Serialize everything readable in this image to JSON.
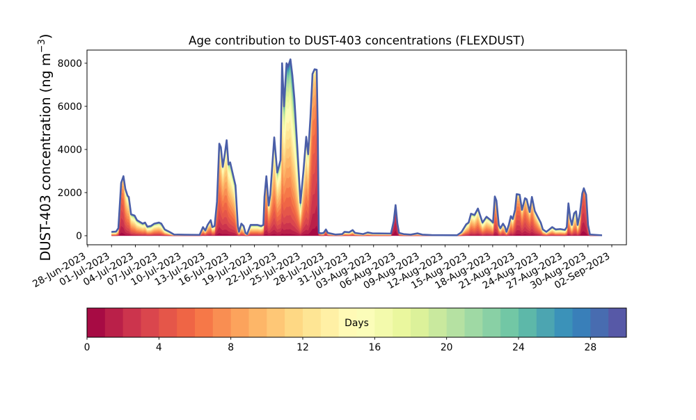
{
  "chart_data": {
    "type": "area",
    "subtype": "stacked-by-age",
    "title": "Age contribution to DUST-403 concentrations (FLEXDUST)",
    "xlabel": "",
    "ylabel": {
      "main": "DUST-403 concentration (ng m",
      "sup": "−3",
      "close": ")"
    },
    "x_units": "days since 01-Jul-2023",
    "x_origin_date": "01-Jul-2023",
    "xlim": [
      -3.09,
      64.84
    ],
    "ylim": [
      -420,
      8610
    ],
    "grid": false,
    "legend": "none",
    "xticks": {
      "values": [
        -3,
        0,
        3,
        6,
        9,
        12,
        15,
        18,
        21,
        24,
        27,
        30,
        33,
        36,
        39,
        42,
        45,
        48,
        51,
        54,
        57,
        60,
        63
      ],
      "labels": [
        "28-Jun-2023",
        "01-Jul-2023",
        "04-Jul-2023",
        "07-Jul-2023",
        "10-Jul-2023",
        "13-Jul-2023",
        "16-Jul-2023",
        "19-Jul-2023",
        "22-Jul-2023",
        "25-Jul-2023",
        "28-Jul-2023",
        "31-Jul-2023",
        "03-Aug-2023",
        "06-Aug-2023",
        "09-Aug-2023",
        "12-Aug-2023",
        "15-Aug-2023",
        "18-Aug-2023",
        "21-Aug-2023",
        "24-Aug-2023",
        "27-Aug-2023",
        "30-Aug-2023",
        "02-Sep-2023"
      ]
    },
    "yticks": {
      "values": [
        0,
        2000,
        4000,
        6000,
        8000
      ],
      "labels": [
        "0",
        "2000",
        "4000",
        "6000",
        "8000"
      ]
    },
    "points_fields": [
      "day",
      "total_ng_m3",
      "median_age_days"
    ],
    "points": [
      [
        0.0,
        180,
        12
      ],
      [
        0.57,
        190,
        12
      ],
      [
        0.86,
        350,
        10
      ],
      [
        1.21,
        2450,
        4
      ],
      [
        1.5,
        2760,
        5
      ],
      [
        1.74,
        2170,
        7
      ],
      [
        2.02,
        1850,
        8
      ],
      [
        2.17,
        1800,
        8
      ],
      [
        2.46,
        990,
        9
      ],
      [
        2.9,
        935,
        10
      ],
      [
        3.2,
        720,
        10
      ],
      [
        3.93,
        560,
        10
      ],
      [
        4.22,
        610,
        10
      ],
      [
        4.51,
        420,
        11
      ],
      [
        4.95,
        450,
        11
      ],
      [
        5.39,
        560,
        10
      ],
      [
        5.97,
        610,
        10
      ],
      [
        6.27,
        560,
        11
      ],
      [
        6.7,
        290,
        12
      ],
      [
        7.28,
        180,
        13
      ],
      [
        7.87,
        55,
        14
      ],
      [
        9.19,
        45,
        14
      ],
      [
        11.09,
        40,
        13
      ],
      [
        11.52,
        400,
        8
      ],
      [
        11.81,
        240,
        9
      ],
      [
        12.1,
        500,
        8
      ],
      [
        12.49,
        720,
        8
      ],
      [
        12.69,
        400,
        9
      ],
      [
        12.98,
        450,
        9
      ],
      [
        13.28,
        1580,
        5
      ],
      [
        13.57,
        4270,
        6
      ],
      [
        13.77,
        4100,
        7
      ],
      [
        14.01,
        3190,
        7
      ],
      [
        14.24,
        3730,
        7
      ],
      [
        14.5,
        4430,
        8
      ],
      [
        14.73,
        3300,
        8
      ],
      [
        14.94,
        3400,
        9
      ],
      [
        15.17,
        3030,
        9
      ],
      [
        15.47,
        2550,
        9
      ],
      [
        15.61,
        2330,
        10
      ],
      [
        15.91,
        450,
        11
      ],
      [
        16.05,
        180,
        10
      ],
      [
        16.35,
        560,
        10
      ],
      [
        16.63,
        450,
        11
      ],
      [
        16.87,
        130,
        11
      ],
      [
        17.07,
        75,
        10
      ],
      [
        17.51,
        500,
        10
      ],
      [
        18.39,
        500,
        10
      ],
      [
        18.83,
        450,
        10
      ],
      [
        19.12,
        500,
        9
      ],
      [
        19.26,
        1800,
        6
      ],
      [
        19.5,
        2760,
        6
      ],
      [
        19.79,
        1400,
        7
      ],
      [
        19.99,
        1900,
        7
      ],
      [
        20.49,
        4560,
        8
      ],
      [
        20.87,
        2930,
        9
      ],
      [
        21.28,
        3500,
        9
      ],
      [
        21.48,
        8000,
        10
      ],
      [
        21.72,
        6000,
        10
      ],
      [
        22.04,
        8000,
        11
      ],
      [
        22.24,
        7850,
        11
      ],
      [
        22.53,
        8180,
        11
      ],
      [
        22.77,
        7450,
        12
      ],
      [
        23.03,
        6350,
        12
      ],
      [
        23.38,
        4200,
        12
      ],
      [
        23.79,
        1520,
        11
      ],
      [
        24.17,
        3000,
        8
      ],
      [
        24.52,
        4590,
        8
      ],
      [
        24.76,
        3780,
        8
      ],
      [
        25.05,
        5500,
        6
      ],
      [
        25.31,
        7500,
        5
      ],
      [
        25.57,
        7720,
        5
      ],
      [
        25.84,
        7700,
        4
      ],
      [
        25.97,
        5000,
        4
      ],
      [
        26.1,
        130,
        6
      ],
      [
        26.42,
        110,
        9
      ],
      [
        26.71,
        130,
        10
      ],
      [
        27.0,
        290,
        5
      ],
      [
        27.24,
        130,
        10
      ],
      [
        28.18,
        55,
        12
      ],
      [
        29.05,
        75,
        12
      ],
      [
        29.34,
        180,
        11
      ],
      [
        29.93,
        160,
        11
      ],
      [
        30.37,
        260,
        10
      ],
      [
        30.66,
        130,
        11
      ],
      [
        31.68,
        75,
        12
      ],
      [
        32.26,
        150,
        11
      ],
      [
        32.85,
        110,
        12
      ],
      [
        35.19,
        100,
        12
      ],
      [
        35.54,
        670,
        2
      ],
      [
        35.77,
        1420,
        2
      ],
      [
        36.0,
        560,
        3
      ],
      [
        36.21,
        130,
        8
      ],
      [
        36.79,
        75,
        11
      ],
      [
        37.67,
        50,
        13
      ],
      [
        38.55,
        110,
        12
      ],
      [
        39.13,
        50,
        13
      ],
      [
        40.3,
        30,
        14
      ],
      [
        43.51,
        20,
        14
      ],
      [
        43.95,
        130,
        12
      ],
      [
        44.09,
        180,
        11
      ],
      [
        44.67,
        530,
        10
      ],
      [
        44.97,
        610,
        9
      ],
      [
        45.27,
        1020,
        8
      ],
      [
        45.71,
        960,
        9
      ],
      [
        46.14,
        1260,
        8
      ],
      [
        46.43,
        935,
        9
      ],
      [
        46.72,
        610,
        10
      ],
      [
        47.22,
        880,
        9
      ],
      [
        47.75,
        720,
        9
      ],
      [
        48.04,
        610,
        10
      ],
      [
        48.27,
        1820,
        6
      ],
      [
        48.47,
        1630,
        6
      ],
      [
        48.77,
        500,
        8
      ],
      [
        48.97,
        340,
        9
      ],
      [
        49.3,
        560,
        8
      ],
      [
        49.56,
        400,
        9
      ],
      [
        49.74,
        180,
        10
      ],
      [
        50.03,
        500,
        8
      ],
      [
        50.29,
        910,
        7
      ],
      [
        50.53,
        775,
        8
      ],
      [
        50.82,
        1200,
        6
      ],
      [
        51.02,
        1930,
        5
      ],
      [
        51.4,
        1900,
        5
      ],
      [
        51.69,
        1200,
        6
      ],
      [
        52.07,
        1740,
        5
      ],
      [
        52.28,
        1690,
        6
      ],
      [
        52.66,
        1100,
        6
      ],
      [
        52.94,
        1800,
        6
      ],
      [
        53.3,
        1150,
        7
      ],
      [
        53.71,
        850,
        8
      ],
      [
        54.06,
        600,
        9
      ],
      [
        54.32,
        290,
        10
      ],
      [
        54.76,
        180,
        11
      ],
      [
        55.2,
        310,
        10
      ],
      [
        55.49,
        400,
        10
      ],
      [
        55.93,
        290,
        11
      ],
      [
        56.51,
        310,
        11
      ],
      [
        57.1,
        270,
        11
      ],
      [
        57.33,
        400,
        10
      ],
      [
        57.54,
        1500,
        8
      ],
      [
        57.76,
        825,
        9
      ],
      [
        57.97,
        500,
        10
      ],
      [
        58.26,
        1040,
        9
      ],
      [
        58.5,
        1130,
        9
      ],
      [
        58.7,
        500,
        10
      ],
      [
        58.99,
        1040,
        8
      ],
      [
        59.28,
        1960,
        3
      ],
      [
        59.48,
        2200,
        3
      ],
      [
        59.77,
        1900,
        4
      ],
      [
        60.01,
        500,
        6
      ],
      [
        60.25,
        55,
        12
      ],
      [
        61.77,
        20,
        13
      ]
    ],
    "total_line_color": "#4a5ea8",
    "colormap": {
      "name": "Spectral",
      "stops": [
        "#9e0142",
        "#d53e4f",
        "#f46d43",
        "#fdae61",
        "#fee08b",
        "#ffffbf",
        "#e6f598",
        "#abdda4",
        "#66c2a5",
        "#3288bd",
        "#5e4fa2"
      ]
    },
    "colorbar": {
      "label": "Days",
      "orientation": "horizontal",
      "placement": "bottom",
      "range": [
        0,
        30
      ],
      "bins": 30,
      "ticks": {
        "values": [
          0,
          4,
          8,
          12,
          16,
          20,
          24,
          28
        ],
        "labels": [
          "0",
          "4",
          "8",
          "12",
          "16",
          "20",
          "24",
          "28"
        ]
      }
    }
  }
}
